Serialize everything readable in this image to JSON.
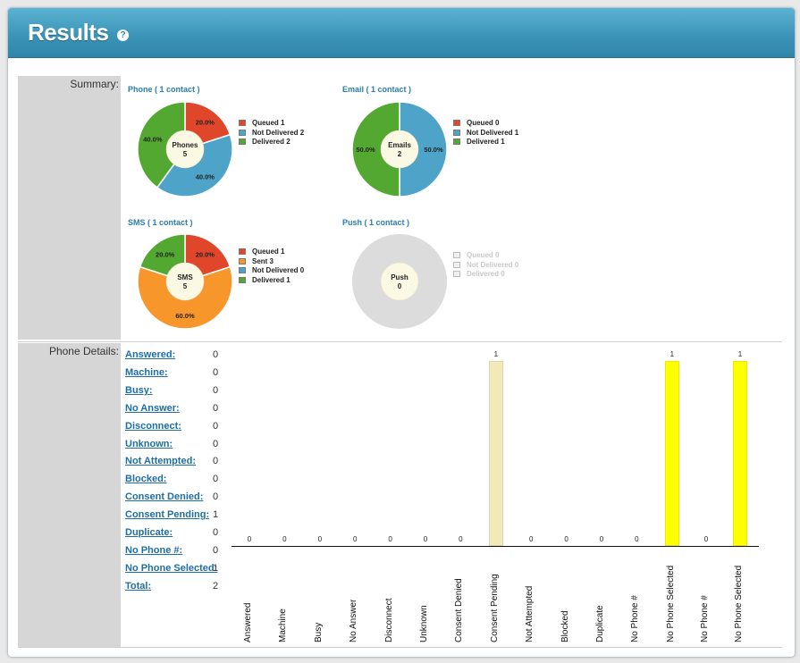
{
  "header": {
    "title": "Results",
    "help_icon": "?"
  },
  "summary": {
    "label": "Summary:",
    "charts": [
      {
        "title": "Phone ( 1 contact )",
        "center": [
          "Phones",
          "5"
        ],
        "slices": [
          {
            "pct": 20,
            "label": "20.0%",
            "color": "#e0462a"
          },
          {
            "pct": 40,
            "label": "40.0%",
            "color": "#4ea3c9"
          },
          {
            "pct": 40,
            "label": "40.0%",
            "color": "#52a830"
          }
        ],
        "legend": [
          {
            "text": "Queued 1",
            "color": "#e0462a"
          },
          {
            "text": "Not Delivered 2",
            "color": "#4ea3c9"
          },
          {
            "text": "Delivered 2",
            "color": "#52a830"
          }
        ]
      },
      {
        "title": "Email ( 1 contact )",
        "center": [
          "Emails",
          "2"
        ],
        "slices": [
          {
            "pct": 0,
            "label": "",
            "color": "#e0462a"
          },
          {
            "pct": 50,
            "label": "50.0%",
            "color": "#4ea3c9"
          },
          {
            "pct": 50,
            "label": "50.0%",
            "color": "#52a830"
          }
        ],
        "legend": [
          {
            "text": "Queued 0",
            "color": "#e0462a"
          },
          {
            "text": "Not Delivered 1",
            "color": "#4ea3c9"
          },
          {
            "text": "Delivered 1",
            "color": "#52a830"
          }
        ]
      },
      {
        "title": "SMS ( 1 contact )",
        "center": [
          "SMS",
          "5"
        ],
        "slices": [
          {
            "pct": 20,
            "label": "20.0%",
            "color": "#e0462a"
          },
          {
            "pct": 60,
            "label": "60.0%",
            "color": "#f7962b"
          },
          {
            "pct": 0,
            "label": "",
            "color": "#4ea3c9"
          },
          {
            "pct": 20,
            "label": "20.0%",
            "color": "#52a830"
          }
        ],
        "legend": [
          {
            "text": "Queued 1",
            "color": "#e0462a"
          },
          {
            "text": "Sent 3",
            "color": "#f7962b"
          },
          {
            "text": "Not Delivered 0",
            "color": "#4ea3c9"
          },
          {
            "text": "Delivered 1",
            "color": "#52a830"
          }
        ]
      },
      {
        "title": "Push ( 1 contact )",
        "center": [
          "Push",
          "0"
        ],
        "slices": [],
        "legend": [
          {
            "text": "Queued 0",
            "color": "#f0f0f0"
          },
          {
            "text": "Not Delivered 0",
            "color": "#f0f0f0"
          },
          {
            "text": "Delivered 0",
            "color": "#f0f0f0"
          }
        ]
      }
    ]
  },
  "phone_details": {
    "label": "Phone Details:",
    "rows": [
      {
        "label": "Answered:",
        "value": "0"
      },
      {
        "label": "Machine:",
        "value": "0"
      },
      {
        "label": "Busy:",
        "value": "0"
      },
      {
        "label": "No Answer:",
        "value": "0"
      },
      {
        "label": "Disconnect:",
        "value": "0"
      },
      {
        "label": "Unknown:",
        "value": "0"
      },
      {
        "label": "Not Attempted:",
        "value": "0"
      },
      {
        "label": "Blocked:",
        "value": "0"
      },
      {
        "label": "Consent Denied:",
        "value": "0"
      },
      {
        "label": "Consent Pending:",
        "value": "1"
      },
      {
        "label": "Duplicate:",
        "value": "0"
      },
      {
        "label": "No Phone #:",
        "value": "0"
      },
      {
        "label": "No Phone Selected:",
        "value": "1"
      },
      {
        "label": "Total:",
        "value": "2"
      }
    ]
  },
  "chart_data": {
    "type": "bar",
    "categories": [
      "Answered",
      "Machine",
      "Busy",
      "No Answer",
      "Disconnect",
      "Unknown",
      "Consent Denied",
      "Consent Pending",
      "Not Attempted",
      "Blocked",
      "Duplicate",
      "No Phone #",
      "No Phone Selected",
      "No Phone #",
      "No Phone Selected"
    ],
    "values": [
      0,
      0,
      0,
      0,
      0,
      0,
      0,
      1,
      0,
      0,
      0,
      0,
      1,
      0,
      1
    ],
    "data_labels": [
      "0",
      "0",
      "0",
      "0",
      "0",
      "0",
      "0",
      "1",
      "0",
      "0",
      "0",
      "0",
      "1",
      "0",
      "1"
    ],
    "bar_colors": [
      "#f2e9b8",
      "#f2e9b8",
      "#f2e9b8",
      "#f2e9b8",
      "#f2e9b8",
      "#f2e9b8",
      "#f2e9b8",
      "#f2e9b8",
      "#f2e9b8",
      "#f2e9b8",
      "#f2e9b8",
      "#f2e9b8",
      "#ffff00",
      "#ffff00",
      "#ffff00"
    ],
    "ylim": [
      0,
      1
    ],
    "grid": false
  }
}
